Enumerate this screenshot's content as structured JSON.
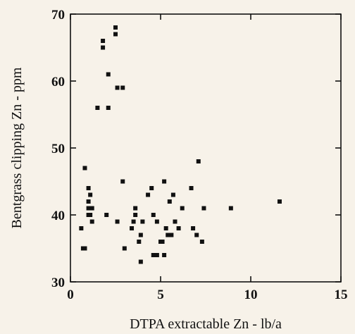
{
  "chart_data": {
    "type": "scatter",
    "title": "",
    "xlabel": "DTPA extractable Zn - lb/a",
    "ylabel": "Bentgrass clipping Zn - ppm",
    "xlim": [
      0,
      15
    ],
    "ylim": [
      30,
      70
    ],
    "xticks": [
      0,
      5,
      10,
      15
    ],
    "yticks": [
      30,
      40,
      50,
      60,
      70
    ],
    "grid": false,
    "legend": "none",
    "marker": "square",
    "color": "#111111",
    "points": [
      [
        0.6,
        38
      ],
      [
        0.7,
        35
      ],
      [
        0.8,
        35
      ],
      [
        0.8,
        47
      ],
      [
        1.0,
        44
      ],
      [
        1.0,
        42
      ],
      [
        1.0,
        41
      ],
      [
        1.0,
        40
      ],
      [
        1.1,
        43
      ],
      [
        1.1,
        40
      ],
      [
        1.2,
        41
      ],
      [
        1.2,
        39
      ],
      [
        1.5,
        56
      ],
      [
        1.8,
        66
      ],
      [
        1.8,
        65
      ],
      [
        2.0,
        40
      ],
      [
        2.1,
        61
      ],
      [
        2.1,
        56
      ],
      [
        2.5,
        68
      ],
      [
        2.5,
        67
      ],
      [
        2.6,
        59
      ],
      [
        2.6,
        39
      ],
      [
        2.9,
        45
      ],
      [
        2.9,
        59
      ],
      [
        3.0,
        35
      ],
      [
        3.4,
        38
      ],
      [
        3.5,
        39
      ],
      [
        3.6,
        41
      ],
      [
        3.6,
        40
      ],
      [
        3.8,
        36
      ],
      [
        3.9,
        37
      ],
      [
        3.9,
        33
      ],
      [
        4.0,
        39
      ],
      [
        4.3,
        43
      ],
      [
        4.5,
        44
      ],
      [
        4.6,
        34
      ],
      [
        4.6,
        40
      ],
      [
        4.8,
        39
      ],
      [
        4.8,
        34
      ],
      [
        5.0,
        36
      ],
      [
        5.1,
        36
      ],
      [
        5.2,
        34
      ],
      [
        5.2,
        45
      ],
      [
        5.3,
        38
      ],
      [
        5.4,
        37
      ],
      [
        5.5,
        42
      ],
      [
        5.6,
        37
      ],
      [
        5.7,
        43
      ],
      [
        5.8,
        39
      ],
      [
        6.0,
        38
      ],
      [
        6.2,
        41
      ],
      [
        6.7,
        44
      ],
      [
        6.8,
        38
      ],
      [
        7.0,
        37
      ],
      [
        7.1,
        48
      ],
      [
        7.3,
        36
      ],
      [
        7.4,
        41
      ],
      [
        8.9,
        41
      ],
      [
        11.6,
        42
      ]
    ]
  }
}
